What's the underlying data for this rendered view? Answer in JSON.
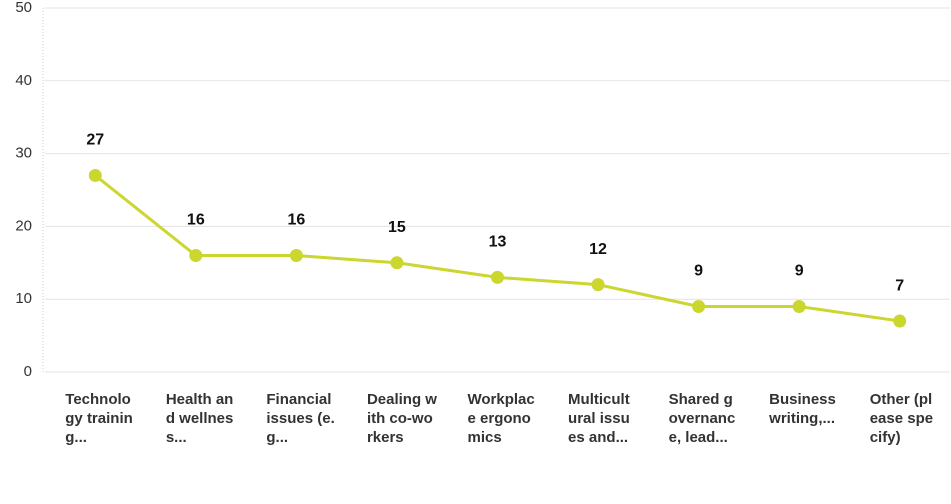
{
  "chart_data": {
    "type": "line",
    "categories": [
      "Technology training...",
      "Health and wellness...",
      "Financial issues (e.g...",
      "Dealing with co-workers",
      "Workplace ergonomics",
      "Multicultural issues and...",
      "Shared governance, lead...",
      "Business writing,...",
      "Other (please specify)"
    ],
    "values": [
      27,
      16,
      16,
      15,
      13,
      12,
      9,
      9,
      7
    ],
    "color": "#cbd62f",
    "ylim": [
      0,
      50
    ],
    "yticks": [
      0,
      10,
      20,
      30,
      40,
      50
    ],
    "grid": true
  }
}
